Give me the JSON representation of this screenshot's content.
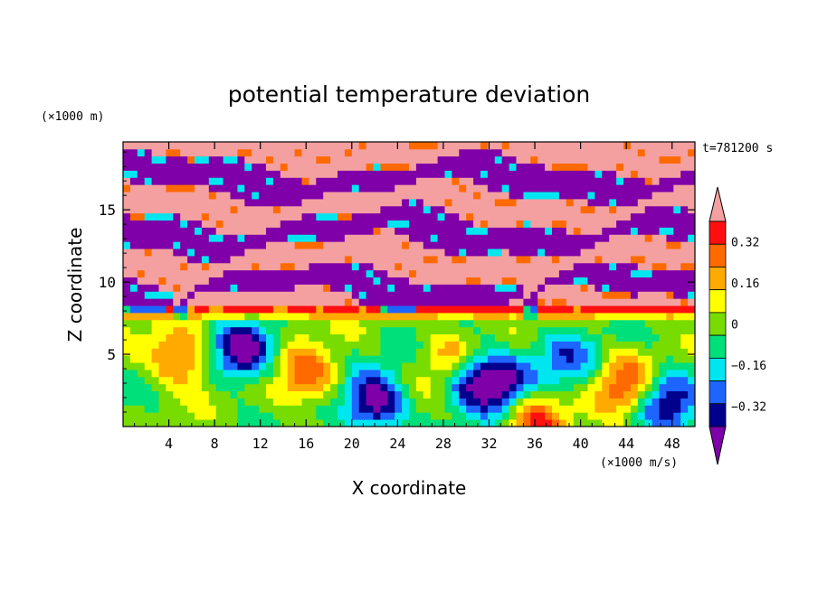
{
  "chart_data": {
    "type": "heatmap",
    "title": "potential temperature deviation",
    "xlabel": "X coordinate",
    "ylabel": "Z coordinate",
    "x_unit": "(×1000 m/s)",
    "y_unit": "(×1000 m)",
    "time_label": "t=781200 s",
    "xlim": [
      0,
      50
    ],
    "ylim": [
      0,
      19.7
    ],
    "x_ticks": [
      4,
      8,
      12,
      16,
      20,
      24,
      28,
      32,
      36,
      40,
      44,
      48
    ],
    "y_ticks": [
      5,
      10,
      15
    ],
    "colorbar": {
      "levels": [
        -0.4,
        -0.32,
        -0.24,
        -0.16,
        -0.08,
        0,
        0.08,
        0.16,
        0.24,
        0.32,
        0.4
      ],
      "colors": [
        "#7f00a8",
        "#00008c",
        "#1e64ff",
        "#00e6f0",
        "#00e07a",
        "#78dc00",
        "#ffff00",
        "#ffaa00",
        "#ff6a00",
        "#ff1010",
        "#f4a0a0"
      ],
      "tick_labels": [
        "0.32",
        "0.16",
        "0",
        "−0.16",
        "−0.32"
      ],
      "tick_values": [
        0.32,
        0.16,
        0,
        -0.16,
        -0.32
      ],
      "extend": "both"
    },
    "features": {
      "upper_layers": [
        {
          "z": 19.0,
          "amp": 0.45,
          "phase": 0.3
        },
        {
          "z": 17.2,
          "amp": -0.45,
          "phase": 1.1
        },
        {
          "z": 15.3,
          "amp": 0.45,
          "phase": 2.0
        },
        {
          "z": 13.5,
          "amp": -0.45,
          "phase": 2.7
        },
        {
          "z": 11.5,
          "amp": 0.45,
          "phase": 3.5
        },
        {
          "z": 9.6,
          "amp": -0.45,
          "phase": 4.4
        },
        {
          "z": 8.2,
          "amp": 0.45,
          "phase": 5.2
        }
      ],
      "plumes": [
        {
          "x": 10.5,
          "z": 5.2,
          "amp": -0.42
        },
        {
          "x": 22,
          "z": 1.6,
          "amp": -0.42
        },
        {
          "x": 30,
          "z": 3.6,
          "amp": -0.42
        },
        {
          "x": 33,
          "z": 3.0,
          "amp": -0.38
        },
        {
          "x": 47.5,
          "z": 2.0,
          "amp": -0.35
        },
        {
          "x": 5,
          "z": 4.8,
          "amp": 0.3
        },
        {
          "x": 16,
          "z": 3.4,
          "amp": 0.28
        },
        {
          "x": 29,
          "z": 4.5,
          "amp": 0.35
        },
        {
          "x": 44,
          "z": 3.0,
          "amp": 0.3
        },
        {
          "x": 36,
          "z": 0.6,
          "amp": 0.3
        },
        {
          "x": 38.5,
          "z": 4.8,
          "amp": -0.22
        }
      ]
    }
  }
}
